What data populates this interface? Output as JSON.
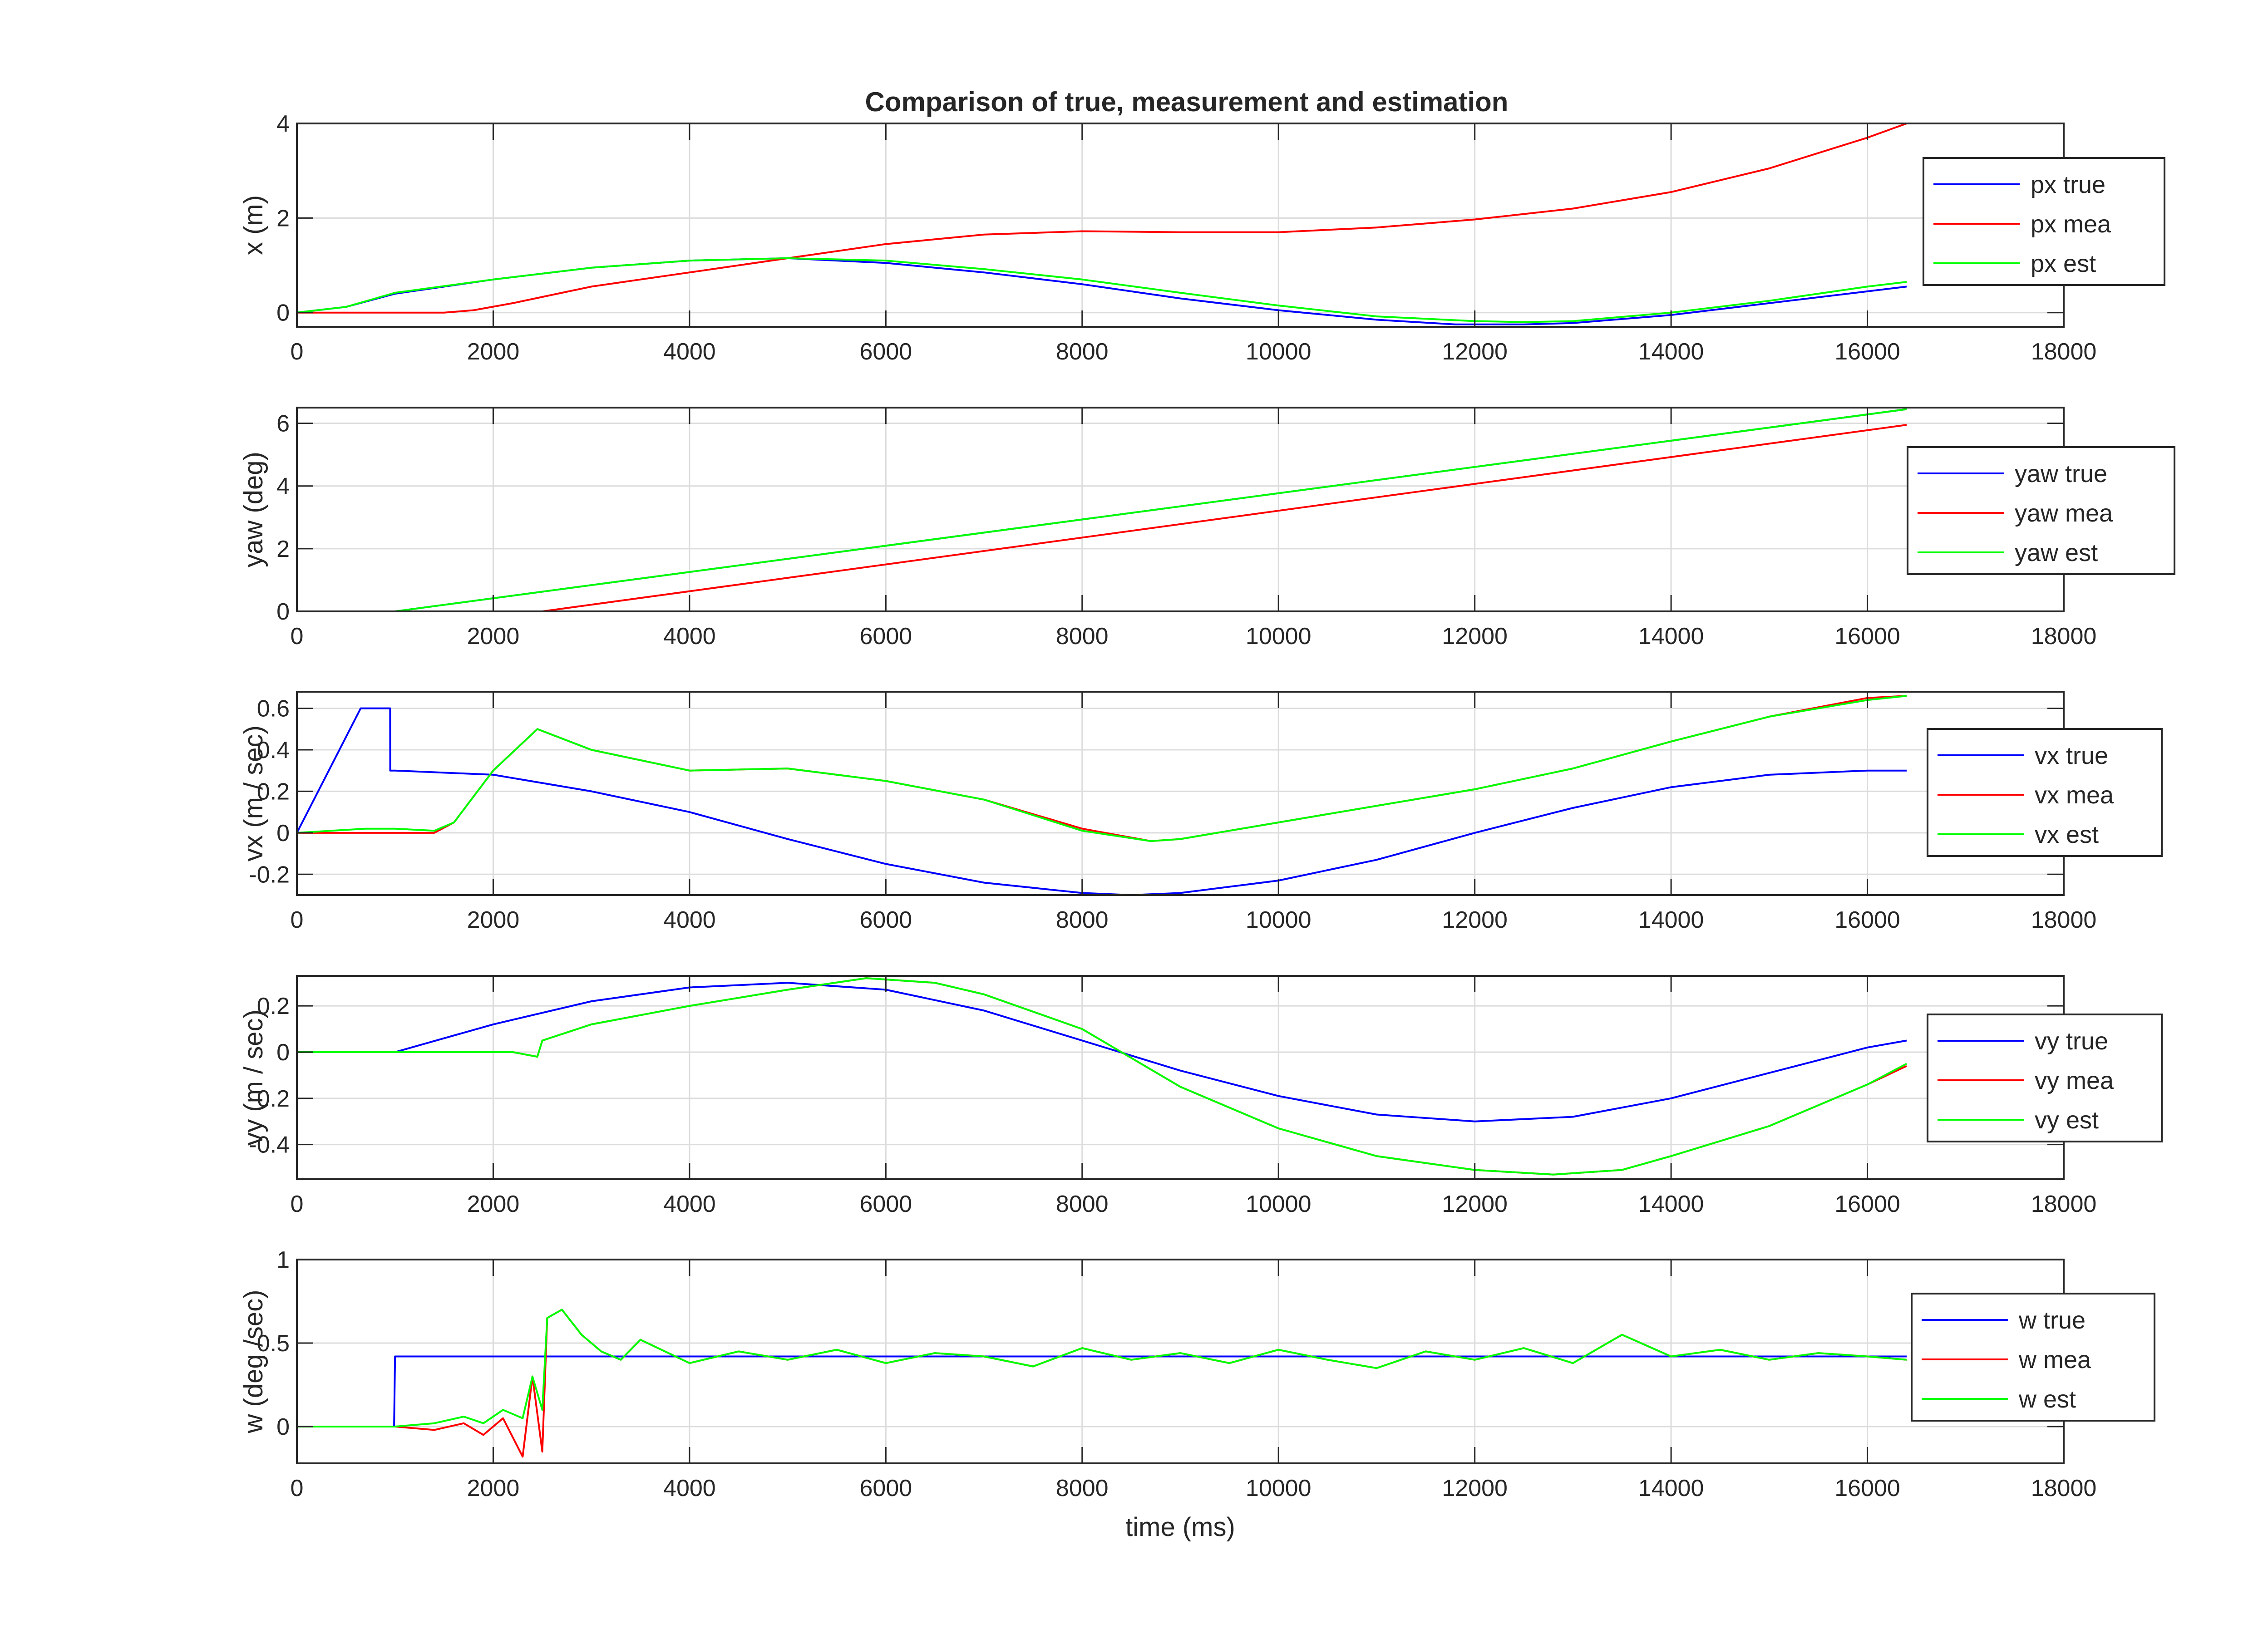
{
  "figure": {
    "title": "Comparison of true, measurement and estimation"
  },
  "chart_data": [
    {
      "type": "line",
      "xlabel": "",
      "ylabel": "x (m)",
      "xlim": [
        0,
        18000
      ],
      "ylim": [
        -0.3,
        4
      ],
      "xticks": [
        0,
        2000,
        4000,
        6000,
        8000,
        10000,
        12000,
        14000,
        16000,
        18000
      ],
      "yticks": [
        0,
        2,
        4
      ],
      "grid": true,
      "legend_position": "right",
      "series": [
        {
          "name": "px true",
          "color": "#0000ff",
          "x": [
            0,
            500,
            1000,
            2000,
            3000,
            4000,
            5000,
            6000,
            7000,
            8000,
            9000,
            10000,
            11000,
            11800,
            12500,
            13000,
            14000,
            15000,
            16000,
            16400
          ],
          "y": [
            0,
            0.12,
            0.4,
            0.7,
            0.95,
            1.1,
            1.15,
            1.05,
            0.85,
            0.6,
            0.3,
            0.05,
            -0.15,
            -0.25,
            -0.25,
            -0.22,
            -0.05,
            0.2,
            0.45,
            0.55
          ]
        },
        {
          "name": "px mea",
          "color": "#ff0000",
          "x": [
            0,
            1500,
            1800,
            2200,
            3000,
            4000,
            5000,
            6000,
            7000,
            8000,
            9000,
            10000,
            11000,
            12000,
            13000,
            14000,
            15000,
            16000,
            16400
          ],
          "y": [
            0,
            0,
            0.05,
            0.2,
            0.55,
            0.85,
            1.15,
            1.45,
            1.65,
            1.72,
            1.7,
            1.7,
            1.8,
            1.97,
            2.2,
            2.55,
            3.05,
            3.7,
            4.0
          ]
        },
        {
          "name": "px est",
          "color": "#00ff00",
          "x": [
            0,
            500,
            1000,
            2000,
            3000,
            4000,
            5000,
            6000,
            7000,
            8000,
            9000,
            10000,
            11000,
            12000,
            12500,
            13000,
            14000,
            15000,
            16000,
            16400
          ],
          "y": [
            0,
            0.12,
            0.42,
            0.7,
            0.95,
            1.1,
            1.15,
            1.1,
            0.92,
            0.7,
            0.42,
            0.15,
            -0.08,
            -0.18,
            -0.2,
            -0.18,
            0.0,
            0.25,
            0.55,
            0.65
          ]
        }
      ]
    },
    {
      "type": "line",
      "xlabel": "",
      "ylabel": "yaw (deg)",
      "xlim": [
        0,
        18000
      ],
      "ylim": [
        0,
        6.5
      ],
      "xticks": [
        0,
        2000,
        4000,
        6000,
        8000,
        10000,
        12000,
        14000,
        16000,
        18000
      ],
      "yticks": [
        0,
        2,
        4,
        6
      ],
      "grid": true,
      "legend_position": "right",
      "series": [
        {
          "name": "yaw true",
          "color": "#0000ff",
          "x": [
            0,
            1000,
            16400
          ],
          "y": [
            0,
            0,
            6.45
          ]
        },
        {
          "name": "yaw mea",
          "color": "#ff0000",
          "x": [
            0,
            2500,
            16400
          ],
          "y": [
            0,
            0,
            5.95
          ]
        },
        {
          "name": "yaw est",
          "color": "#00ff00",
          "x": [
            0,
            1000,
            16400
          ],
          "y": [
            0,
            0,
            6.45
          ]
        }
      ]
    },
    {
      "type": "line",
      "xlabel": "",
      "ylabel": "vx (m / sec)",
      "xlim": [
        0,
        18000
      ],
      "ylim": [
        -0.3,
        0.68
      ],
      "xticks": [
        0,
        2000,
        4000,
        6000,
        8000,
        10000,
        12000,
        14000,
        16000,
        18000
      ],
      "yticks": [
        -0.2,
        0,
        0.2,
        0.4,
        0.6
      ],
      "grid": true,
      "legend_position": "right",
      "series": [
        {
          "name": "vx true",
          "color": "#0000ff",
          "x": [
            0,
            650,
            950,
            951,
            1000,
            2000,
            3000,
            4000,
            5000,
            6000,
            7000,
            8000,
            8500,
            9000,
            10000,
            11000,
            12000,
            13000,
            14000,
            15000,
            16000,
            16400
          ],
          "y": [
            0,
            0.6,
            0.6,
            0.3,
            0.3,
            0.28,
            0.2,
            0.1,
            -0.03,
            -0.15,
            -0.24,
            -0.29,
            -0.3,
            -0.29,
            -0.23,
            -0.13,
            0.0,
            0.12,
            0.22,
            0.28,
            0.3,
            0.3
          ]
        },
        {
          "name": "vx mea",
          "color": "#ff0000",
          "x": [
            0,
            1400,
            1600,
            2000,
            2450,
            3000,
            4000,
            5000,
            6000,
            7000,
            8000,
            8700,
            9000,
            10000,
            11000,
            12000,
            13000,
            14000,
            15000,
            16000,
            16400
          ],
          "y": [
            0,
            0,
            0.05,
            0.3,
            0.5,
            0.4,
            0.3,
            0.31,
            0.25,
            0.16,
            0.02,
            -0.04,
            -0.03,
            0.05,
            0.13,
            0.21,
            0.31,
            0.44,
            0.56,
            0.65,
            0.66
          ]
        },
        {
          "name": "vx est",
          "color": "#00ff00",
          "x": [
            0,
            700,
            1000,
            1400,
            1600,
            2000,
            2450,
            3000,
            4000,
            5000,
            6000,
            7000,
            8000,
            8700,
            9000,
            10000,
            11000,
            12000,
            13000,
            14000,
            15000,
            16000,
            16400
          ],
          "y": [
            0,
            0.02,
            0.02,
            0.01,
            0.05,
            0.3,
            0.5,
            0.4,
            0.3,
            0.31,
            0.25,
            0.16,
            0.01,
            -0.04,
            -0.03,
            0.05,
            0.13,
            0.21,
            0.31,
            0.44,
            0.56,
            0.64,
            0.66
          ]
        }
      ]
    },
    {
      "type": "line",
      "xlabel": "",
      "ylabel": "vy (m / sec)",
      "xlim": [
        0,
        18000
      ],
      "ylim": [
        -0.55,
        0.33
      ],
      "xticks": [
        0,
        2000,
        4000,
        6000,
        8000,
        10000,
        12000,
        14000,
        16000,
        18000
      ],
      "yticks": [
        -0.4,
        -0.2,
        0,
        0.2
      ],
      "grid": true,
      "legend_position": "right",
      "series": [
        {
          "name": "vy true",
          "color": "#0000ff",
          "x": [
            0,
            1000,
            2000,
            3000,
            4000,
            5000,
            6000,
            7000,
            8000,
            9000,
            10000,
            11000,
            12000,
            13000,
            14000,
            15000,
            16000,
            16400
          ],
          "y": [
            0,
            0,
            0.12,
            0.22,
            0.28,
            0.3,
            0.27,
            0.18,
            0.05,
            -0.08,
            -0.19,
            -0.27,
            -0.3,
            -0.28,
            -0.2,
            -0.09,
            0.02,
            0.05
          ]
        },
        {
          "name": "vy mea",
          "color": "#ff0000",
          "x": [
            0,
            1500,
            2200,
            2450,
            2500,
            3000,
            4000,
            5000,
            5800,
            6500,
            7000,
            8000,
            9000,
            10000,
            11000,
            12000,
            12800,
            13500,
            14000,
            15000,
            16000,
            16400
          ],
          "y": [
            0,
            0,
            0.0,
            -0.02,
            0.05,
            0.12,
            0.2,
            0.27,
            0.32,
            0.3,
            0.25,
            0.1,
            -0.15,
            -0.33,
            -0.45,
            -0.51,
            -0.53,
            -0.51,
            -0.45,
            -0.32,
            -0.14,
            -0.06
          ]
        },
        {
          "name": "vy est",
          "color": "#00ff00",
          "x": [
            0,
            1500,
            2200,
            2450,
            2500,
            3000,
            4000,
            5000,
            5800,
            6500,
            7000,
            8000,
            9000,
            10000,
            11000,
            12000,
            12800,
            13500,
            14000,
            15000,
            16000,
            16400
          ],
          "y": [
            0,
            0,
            0.0,
            -0.02,
            0.05,
            0.12,
            0.2,
            0.27,
            0.32,
            0.3,
            0.25,
            0.1,
            -0.15,
            -0.33,
            -0.45,
            -0.51,
            -0.53,
            -0.51,
            -0.45,
            -0.32,
            -0.14,
            -0.05
          ]
        }
      ]
    },
    {
      "type": "line",
      "xlabel": "time (ms)",
      "ylabel": "w (deg /sec)",
      "xlim": [
        0,
        18000
      ],
      "ylim": [
        -0.22,
        1
      ],
      "xticks": [
        0,
        2000,
        4000,
        6000,
        8000,
        10000,
        12000,
        14000,
        16000,
        18000
      ],
      "yticks": [
        0,
        0.5,
        1
      ],
      "grid": true,
      "legend_position": "right",
      "series": [
        {
          "name": "w true",
          "color": "#0000ff",
          "x": [
            0,
            990,
            1000,
            16400
          ],
          "y": [
            0,
            0,
            0.42,
            0.42
          ]
        },
        {
          "name": "w mea",
          "color": "#ff0000",
          "x": [
            0,
            1000,
            1400,
            1700,
            1900,
            2100,
            2300,
            2400,
            2500,
            2550,
            2700,
            2900,
            3100,
            3300,
            3500,
            4000,
            4500,
            5000,
            5500,
            6000,
            6500,
            7000,
            7500,
            8000,
            8500,
            9000,
            9500,
            10000,
            10500,
            11000,
            11500,
            12000,
            12500,
            13000,
            13500,
            14000,
            14500,
            15000,
            15500,
            16000,
            16400
          ],
          "y": [
            0,
            0,
            -0.02,
            0.02,
            -0.05,
            0.05,
            -0.18,
            0.3,
            -0.15,
            0.65,
            0.7,
            0.55,
            0.45,
            0.4,
            0.52,
            0.38,
            0.45,
            0.4,
            0.46,
            0.38,
            0.44,
            0.42,
            0.36,
            0.47,
            0.4,
            0.44,
            0.38,
            0.46,
            0.4,
            0.35,
            0.45,
            0.4,
            0.47,
            0.38,
            0.55,
            0.42,
            0.46,
            0.4,
            0.44,
            0.42,
            0.4
          ]
        },
        {
          "name": "w est",
          "color": "#00ff00",
          "x": [
            0,
            1000,
            1400,
            1700,
            1900,
            2100,
            2300,
            2400,
            2500,
            2550,
            2700,
            2900,
            3100,
            3300,
            3500,
            4000,
            4500,
            5000,
            5500,
            6000,
            6500,
            7000,
            7500,
            8000,
            8500,
            9000,
            9500,
            10000,
            10500,
            11000,
            11500,
            12000,
            12500,
            13000,
            13500,
            14000,
            14500,
            15000,
            15500,
            16000,
            16400
          ],
          "y": [
            0,
            0,
            0.02,
            0.06,
            0.02,
            0.1,
            0.05,
            0.3,
            0.1,
            0.65,
            0.7,
            0.55,
            0.45,
            0.4,
            0.52,
            0.38,
            0.45,
            0.4,
            0.46,
            0.38,
            0.44,
            0.42,
            0.36,
            0.47,
            0.4,
            0.44,
            0.38,
            0.46,
            0.4,
            0.35,
            0.45,
            0.4,
            0.47,
            0.38,
            0.55,
            0.42,
            0.46,
            0.4,
            0.44,
            0.42,
            0.4
          ]
        }
      ]
    }
  ]
}
